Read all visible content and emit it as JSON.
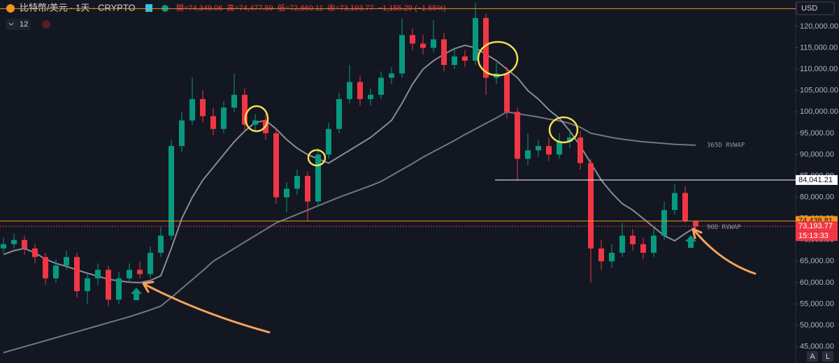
{
  "chart_data": {
    "type": "candlestick",
    "title": "比特幣/美元 · 1天 · CRYPTO",
    "ohlc_labels": [
      "開=74,349.06",
      "高=74,477.59",
      "低=72,660.11",
      "收=73,193.77",
      "−1,155.29 (−1.55%)"
    ],
    "indicator_count": "12",
    "currency": "USD",
    "scale_buttons": [
      "A",
      "L"
    ],
    "up_color": "#089981",
    "down_color": "#f23645",
    "ylim": [
      41168,
      126215
    ],
    "yticks": [
      {
        "value": 45000,
        "label": "45,000.00"
      },
      {
        "value": 50000,
        "label": "50,000.00"
      },
      {
        "value": 55000,
        "label": "55,000.00"
      },
      {
        "value": 60000,
        "label": "60,000.00"
      },
      {
        "value": 65000,
        "label": "65,000.00"
      },
      {
        "value": 70000,
        "label": "70,000.00"
      },
      {
        "value": 75000,
        "label": "75,000.00"
      },
      {
        "value": 80000,
        "label": "80,000.00"
      },
      {
        "value": 85000,
        "label": "85,000.00"
      },
      {
        "value": 90000,
        "label": "90,000.00"
      },
      {
        "value": 95000,
        "label": "95,000.00"
      },
      {
        "value": 100000,
        "label": "100,000.00"
      },
      {
        "value": 105000,
        "label": "105,000.00"
      },
      {
        "value": 110000,
        "label": "110,000.00"
      },
      {
        "value": 115000,
        "label": "115,000.00"
      },
      {
        "value": 120000,
        "label": "120,000.00"
      }
    ],
    "open": [
      68000,
      69000,
      70000,
      68000,
      66000,
      61000,
      64000,
      66000,
      58000,
      61000,
      63000,
      56000,
      61000,
      63000,
      62000,
      67000,
      71000,
      92000,
      98000,
      103000,
      99000,
      96000,
      101000,
      104000,
      97000,
      98000,
      95000,
      80000,
      82000,
      85000,
      79000,
      90000,
      96000,
      103000,
      107000,
      103000,
      104000,
      108000,
      109000,
      118000,
      116000,
      115000,
      117000,
      111000,
      113000,
      112000,
      122000,
      108000,
      109000,
      100000,
      89000,
      91000,
      92000,
      90000,
      93000,
      94000,
      88000,
      68000,
      65000,
      67000,
      71000,
      69000,
      67000,
      71000,
      77000,
      81000,
      74349.06
    ],
    "high": [
      70500,
      71500,
      71000,
      69000,
      67000,
      65500,
      67500,
      67000,
      62500,
      64500,
      64000,
      62500,
      64500,
      65000,
      68500,
      73000,
      93500,
      100000,
      108000,
      105000,
      101000,
      102500,
      109000,
      105500,
      99500,
      99500,
      96000,
      83500,
      86500,
      86000,
      91500,
      97500,
      104500,
      111000,
      108500,
      105500,
      109500,
      110500,
      122000,
      119500,
      118000,
      121500,
      118500,
      115000,
      114500,
      125500,
      123000,
      111500,
      110500,
      101000,
      95000,
      93500,
      94000,
      95000,
      96000,
      95500,
      89000,
      70000,
      69000,
      74000,
      72500,
      70500,
      73000,
      79000,
      83000,
      82500,
      74477.59
    ],
    "low": [
      67000,
      68000,
      66500,
      64500,
      59500,
      60000,
      63000,
      56500,
      55000,
      59500,
      54500,
      55000,
      60000,
      61000,
      61000,
      66000,
      70000,
      90500,
      97000,
      97500,
      94500,
      95000,
      100000,
      95500,
      95500,
      93500,
      78500,
      76500,
      80500,
      74500,
      78000,
      89000,
      95000,
      102000,
      101500,
      101500,
      103000,
      106500,
      108000,
      114500,
      113500,
      114000,
      109500,
      110000,
      110500,
      111000,
      104000,
      106500,
      98500,
      84000,
      87500,
      89500,
      88500,
      89000,
      91500,
      86500,
      60000,
      63000,
      63500,
      66000,
      67500,
      65500,
      66000,
      70000,
      76000,
      74000,
      72660.11
    ],
    "close": [
      69000,
      70000,
      68000,
      66000,
      61000,
      64000,
      66000,
      58000,
      61000,
      63000,
      56000,
      61000,
      63000,
      62000,
      67000,
      71000,
      92000,
      98000,
      103000,
      99000,
      96000,
      101000,
      104000,
      97000,
      98000,
      95000,
      80000,
      82000,
      85000,
      79000,
      90000,
      96000,
      103000,
      107000,
      103000,
      104000,
      108000,
      109000,
      118000,
      116000,
      115000,
      117000,
      111000,
      113000,
      112000,
      122000,
      108000,
      109000,
      100000,
      89000,
      91000,
      92000,
      90000,
      93000,
      94000,
      88000,
      68000,
      65000,
      67000,
      71000,
      69000,
      67000,
      71000,
      77000,
      81000,
      74500,
      73193.77
    ],
    "overlays": [
      {
        "name": "365D RVWAP",
        "color": "#9598a1",
        "values": [
          43600,
          44300,
          45000,
          45700,
          46400,
          47100,
          47800,
          48500,
          49200,
          49900,
          50600,
          51300,
          52000,
          52800,
          53600,
          54500,
          56500,
          58600,
          60700,
          62800,
          65000,
          66500,
          68000,
          69500,
          71000,
          72500,
          74000,
          75000,
          76000,
          77000,
          78000,
          79000,
          80000,
          80900,
          81800,
          82700,
          83700,
          85100,
          86500,
          87900,
          89400,
          90700,
          92000,
          93300,
          94700,
          96000,
          97300,
          98600,
          100000,
          99600,
          99200,
          98800,
          98300,
          97900,
          97300,
          96400,
          95000,
          94500,
          94000,
          93600,
          93300,
          93000,
          92800,
          92600,
          92400,
          92300,
          92200
        ]
      },
      {
        "name": "90D RVWAP",
        "color": "#b2b5be",
        "values": [
          66600,
          67500,
          68000,
          67000,
          65500,
          64500,
          63800,
          63000,
          62200,
          61500,
          60800,
          60400,
          60100,
          60000,
          60500,
          61600,
          68000,
          75000,
          80000,
          84000,
          87000,
          90000,
          93000,
          95500,
          97500,
          98000,
          96000,
          93500,
          91500,
          90000,
          89000,
          88000,
          89500,
          91000,
          92500,
          94000,
          96000,
          98000,
          102000,
          106500,
          110000,
          112000,
          113500,
          114800,
          115600,
          115000,
          113500,
          112000,
          110000,
          108000,
          105000,
          103000,
          100500,
          98500,
          95500,
          92000,
          88000,
          84000,
          81000,
          78500,
          77000,
          75000,
          73000,
          71000,
          69800,
          71500,
          73000
        ]
      }
    ],
    "price_lines": [
      {
        "value": 124200,
        "color": "#f7931a"
      },
      {
        "value": 84041.21,
        "label": "84,041.21",
        "color": "#ffffff",
        "text_color": "#131722"
      },
      {
        "value": 74438.81,
        "label": "74,438.81",
        "color": "#f7931a",
        "text_color": "#131722"
      },
      {
        "value": 73193.77,
        "label": "73,193.77",
        "color": "#f23645",
        "text_color": "#ffffff",
        "dotted": true
      }
    ],
    "countdown": "15:13:33"
  }
}
